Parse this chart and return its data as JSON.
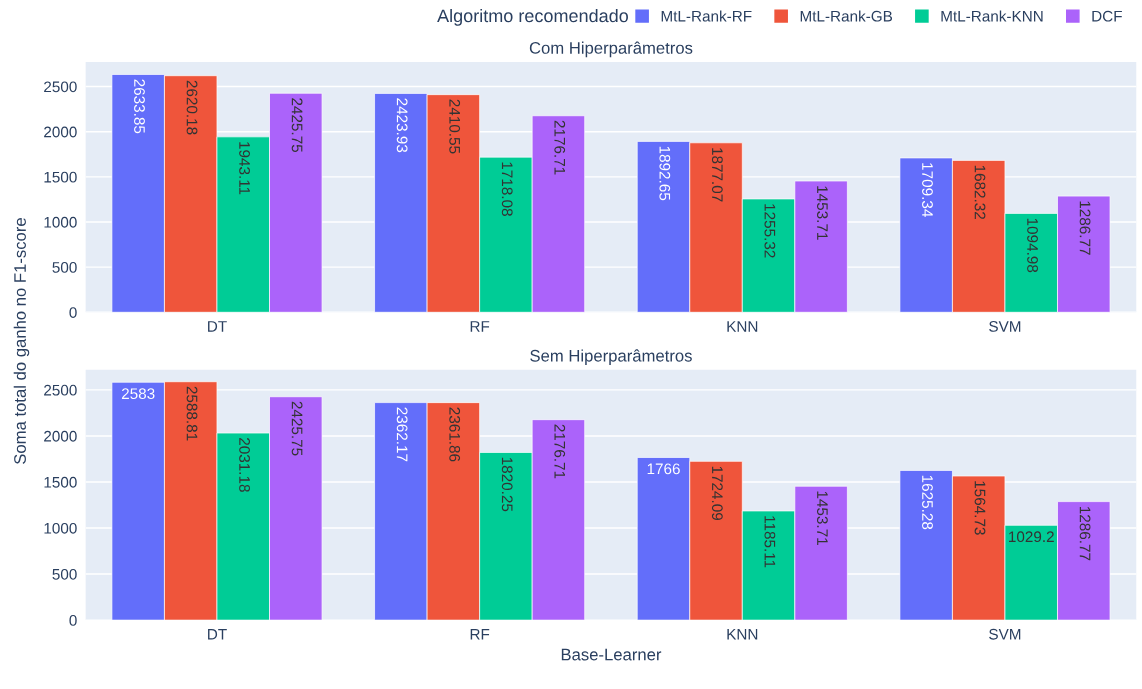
{
  "chart_data": [
    {
      "type": "bar",
      "title": "Com Hiperparâmetros",
      "ylabel": "Soma total do ganho no F1-score",
      "legend_title": "Algoritmo recomendado",
      "legend": "top right",
      "categories": [
        "DT",
        "RF",
        "KNN",
        "SVM"
      ],
      "ylim": [
        0,
        2772
      ],
      "yticks": [
        0,
        500,
        1000,
        1500,
        2000,
        2500
      ],
      "grid": "y",
      "data_labels": true,
      "series": [
        {
          "name": "MtL-Rank-RF",
          "color": "#636efa",
          "values": [
            2633.85,
            2423.93,
            1892.65,
            1709.34
          ]
        },
        {
          "name": "MtL-Rank-GB",
          "color": "#ef553b",
          "values": [
            2620.18,
            2410.55,
            1877.07,
            1682.32
          ]
        },
        {
          "name": "MtL-Rank-KNN",
          "color": "#00cc96",
          "values": [
            1943.11,
            1718.08,
            1255.32,
            1094.98
          ]
        },
        {
          "name": "DCF",
          "color": "#ab63fa",
          "values": [
            2425.75,
            2176.71,
            1453.71,
            1286.77
          ]
        }
      ]
    },
    {
      "type": "bar",
      "title": "Sem Hiperparâmetros",
      "xlabel": "Base-Learner",
      "categories": [
        "DT",
        "RF",
        "KNN",
        "SVM"
      ],
      "ylim": [
        0,
        2718
      ],
      "yticks": [
        0,
        500,
        1000,
        1500,
        2000,
        2500
      ],
      "grid": "y",
      "data_labels": true,
      "series": [
        {
          "color": "#636efa",
          "values": [
            2583,
            2362.17,
            1766,
            1625.28
          ]
        },
        {
          "color": "#ef553b",
          "values": [
            2588.81,
            2361.86,
            1724.09,
            1564.73
          ]
        },
        {
          "color": "#00cc96",
          "values": [
            2031.18,
            1820.25,
            1185.11,
            1029.2
          ]
        },
        {
          "color": "#ab63fa",
          "values": [
            2425.75,
            2176.71,
            1453.71,
            1286.77
          ]
        }
      ]
    }
  ]
}
